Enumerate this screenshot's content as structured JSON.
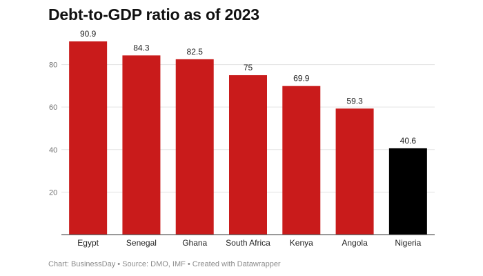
{
  "title": "Debt-to-GDP ratio as of 2023",
  "footer": "Chart: BusinessDay • Source: DMO, IMF • Created with Datawrapper",
  "colors": {
    "default_bar": "#c91b1b",
    "highlight_bar": "#000000",
    "grid": "#e3e3e3",
    "axis": "#333333"
  },
  "chart_data": {
    "type": "bar",
    "title": "Debt-to-GDP ratio as of 2023",
    "categories": [
      "Egypt",
      "Senegal",
      "Ghana",
      "South Africa",
      "Kenya",
      "Angola",
      "Nigeria"
    ],
    "values": [
      90.9,
      84.3,
      82.5,
      75,
      69.9,
      59.3,
      40.6
    ],
    "value_labels": [
      "90.9",
      "84.3",
      "82.5",
      "75",
      "69.9",
      "59.3",
      "40.6"
    ],
    "highlight": "Nigeria",
    "yticks": [
      20,
      40,
      60,
      80
    ],
    "ylim": [
      0,
      90.9
    ],
    "xlabel": "",
    "ylabel": "",
    "grid": true,
    "legend": false
  }
}
